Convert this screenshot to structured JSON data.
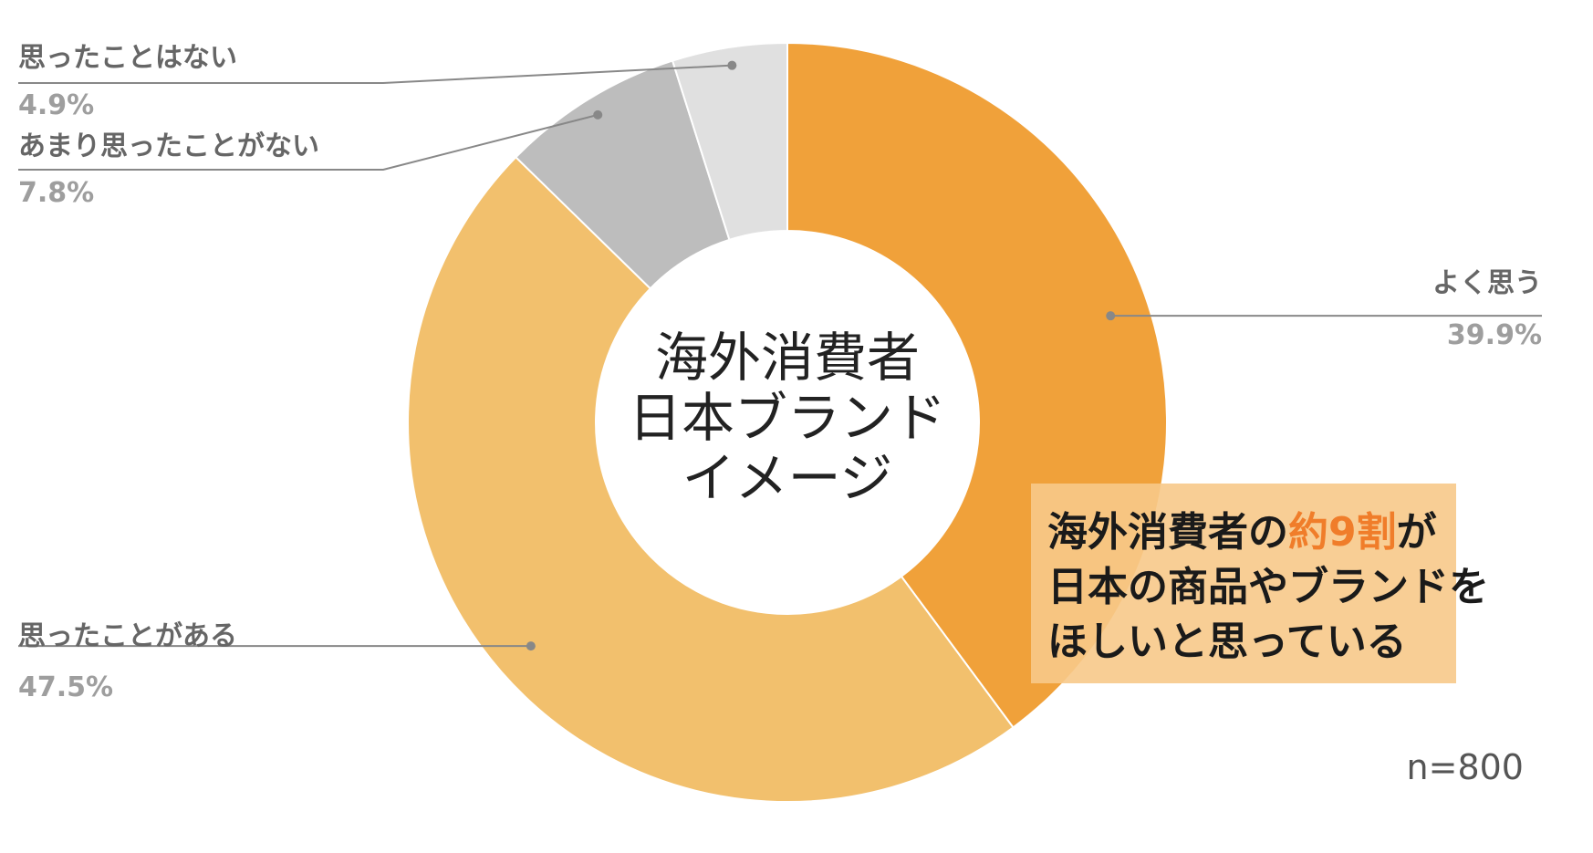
{
  "chart_data": {
    "type": "pie",
    "donut": true,
    "center_label": [
      "海外消費者",
      "日本ブランド",
      "イメージ"
    ],
    "categories": [
      "よく思う",
      "思ったことがある",
      "あまり思ったことがない",
      "思ったことはない"
    ],
    "values": [
      39.9,
      47.5,
      7.8,
      4.9
    ],
    "value_labels": [
      "39.9%",
      "47.5%",
      "7.8%",
      "4.9%"
    ],
    "colors": [
      "#f0a13a",
      "#f2c06d",
      "#bdbdbd",
      "#e0e0e0"
    ],
    "legend": "none",
    "sample_size_note": "n=800"
  },
  "callout": {
    "line1_before": "海外消費者の",
    "line1_highlight": "約9割",
    "line1_after": "が",
    "line2": "日本の商品やブランドを",
    "line3": "ほしいと思っている",
    "background_color": "#f7c98a",
    "highlight_color": "#f07d2a"
  }
}
